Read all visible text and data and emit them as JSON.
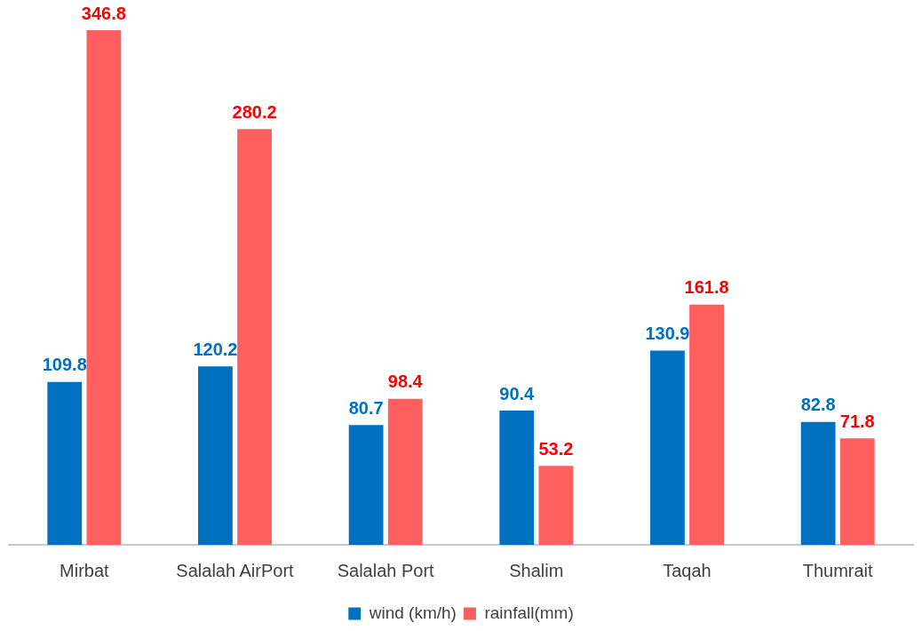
{
  "chart_data": {
    "type": "bar",
    "categories": [
      "Mirbat",
      "Salalah AirPort",
      "Salalah Port",
      "Shalim",
      "Taqah",
      "Thumrait"
    ],
    "series": [
      {
        "name": "wind (km/h)",
        "color": "#0070c0",
        "values": [
          109.8,
          120.2,
          80.7,
          90.4,
          130.9,
          82.8
        ]
      },
      {
        "name": "rainfall(mm)",
        "color": "#ff5f5f",
        "values": [
          346.8,
          280.2,
          98.4,
          53.2,
          161.8,
          71.8
        ]
      }
    ],
    "data_labels": true,
    "legend": "bottom",
    "grid": false
  }
}
